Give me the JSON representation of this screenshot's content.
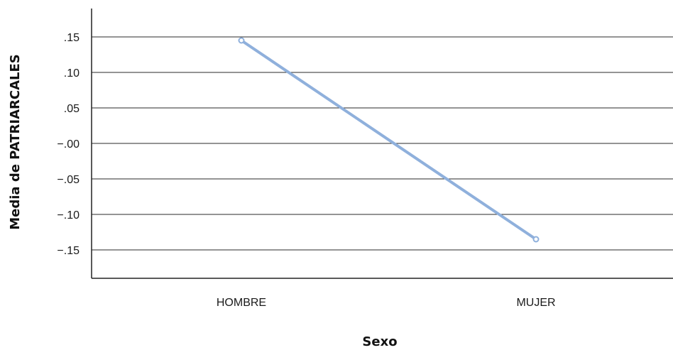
{
  "chart_data": {
    "type": "line",
    "xlabel": "Sexo",
    "ylabel": "Media de PATRIARCALES",
    "categories": [
      "HOMBRE",
      "MUJER"
    ],
    "series": [
      {
        "values": [
          0.145,
          -0.135
        ]
      }
    ],
    "ylim": [
      -0.19,
      0.19
    ],
    "yticks": [
      0.15,
      0.1,
      0.05,
      0.0,
      -0.05,
      -0.1,
      -0.15
    ],
    "ytick_labels": [
      ".15",
      ".10",
      ".05",
      "−.00",
      "−.05",
      "−.10",
      "−.15"
    ],
    "grid": true,
    "line_color": "#8fb0dc",
    "grid_color": "#2a2a2a"
  }
}
